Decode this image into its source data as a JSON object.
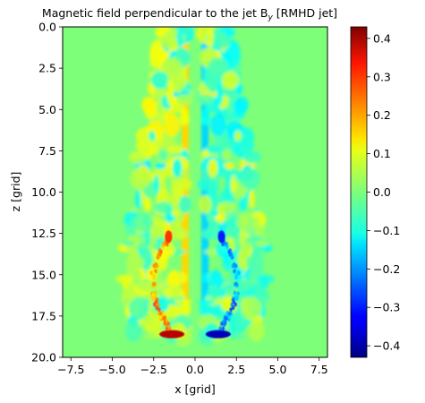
{
  "chart_data": {
    "type": "heatmap",
    "title": "Magnetic field perpendicular to the jet B",
    "title_sub": "y",
    "title_suffix": " [RMHD jet]",
    "xlabel": "x [grid]",
    "ylabel": "z [grid]",
    "xlim": [
      -8,
      8
    ],
    "ylim": [
      20,
      0
    ],
    "xticks": [
      -7.5,
      -5.0,
      -2.5,
      0.0,
      2.5,
      5.0,
      7.5
    ],
    "xtick_labels": [
      "−7.5",
      "−5.0",
      "−2.5",
      "0.0",
      "2.5",
      "5.0",
      "7.5"
    ],
    "yticks": [
      0.0,
      2.5,
      5.0,
      7.5,
      10.0,
      12.5,
      15.0,
      17.5,
      20.0
    ],
    "ytick_labels": [
      "0.0",
      "2.5",
      "5.0",
      "7.5",
      "10.0",
      "12.5",
      "15.0",
      "17.5",
      "20.0"
    ],
    "colormap": "jet",
    "colorbar": {
      "vmin": -0.43,
      "vmax": 0.43,
      "ticks": [
        0.4,
        0.3,
        0.2,
        0.1,
        0.0,
        -0.1,
        -0.2,
        -0.3,
        -0.4
      ],
      "tick_labels": [
        "0.4",
        "0.3",
        "0.2",
        "0.1",
        "0.0",
        "−0.1",
        "−0.2",
        "−0.3",
        "−0.4"
      ]
    },
    "background_value": 0.0,
    "features": [
      {
        "name": "jet-spine-positive",
        "x": -0.6,
        "z_range": [
          0,
          19
        ],
        "value": 0.14
      },
      {
        "name": "jet-spine-negative",
        "x": 0.6,
        "z_range": [
          0,
          19
        ],
        "value": -0.14
      },
      {
        "name": "bow-shock-positive",
        "x": -1.4,
        "z": 18.6,
        "value": 0.38
      },
      {
        "name": "bow-shock-negative",
        "x": 1.4,
        "z": 18.6,
        "value": -0.38
      },
      {
        "name": "cocoon-filament-positive",
        "x": -1.6,
        "z": 12.7,
        "value": 0.28
      },
      {
        "name": "cocoon-filament-negative",
        "x": 1.6,
        "z": 12.7,
        "value": -0.3
      }
    ]
  }
}
